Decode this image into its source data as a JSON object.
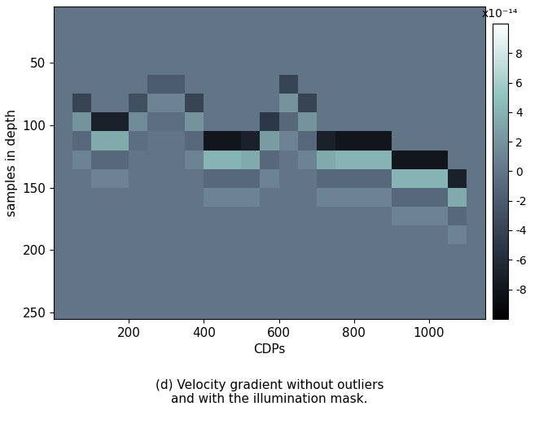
{
  "chart_data": {
    "type": "heatmap",
    "xlabel": "CDPs",
    "ylabel": "samples in depth",
    "caption": "(d) Velocity gradient without outliers\nand with the illumination mask.",
    "xlim": [
      0,
      1150
    ],
    "ylim": [
      255,
      5
    ],
    "xticks": [
      200,
      400,
      600,
      800,
      1000
    ],
    "yticks": [
      50,
      100,
      150,
      200,
      250
    ],
    "x_edges": [
      0,
      50,
      100,
      150,
      200,
      250,
      300,
      350,
      400,
      450,
      500,
      550,
      600,
      650,
      700,
      750,
      800,
      850,
      900,
      950,
      1000,
      1050,
      1100,
      1150
    ],
    "y_edges": [
      5,
      30,
      45,
      60,
      75,
      90,
      105,
      120,
      135,
      150,
      165,
      180,
      195,
      210,
      225,
      240,
      255
    ],
    "cells": [
      [
        0,
        0,
        0,
        0,
        0,
        0,
        0,
        0,
        0,
        0,
        0,
        0,
        0,
        0,
        0,
        0,
        0,
        0,
        0,
        0,
        0,
        0,
        0
      ],
      [
        0,
        0,
        0,
        0,
        0,
        0,
        0,
        0,
        0,
        0,
        0,
        0,
        0,
        0,
        0,
        0,
        0,
        0,
        0,
        0,
        0,
        0,
        0
      ],
      [
        0,
        0,
        0,
        0,
        0,
        0,
        0,
        0,
        0,
        0,
        0,
        0,
        0,
        0,
        0,
        0,
        0,
        0,
        0,
        0,
        0,
        0,
        0
      ],
      [
        0,
        0,
        0,
        0,
        0,
        -2,
        -2,
        0,
        0,
        0,
        0,
        0,
        -4,
        0,
        0,
        0,
        0,
        0,
        0,
        0,
        0,
        0,
        0
      ],
      [
        0,
        -4,
        0,
        0,
        -3,
        1,
        1,
        -4,
        0,
        0,
        0,
        0,
        2,
        -4,
        0,
        0,
        0,
        0,
        0,
        0,
        0,
        0,
        0
      ],
      [
        0,
        2,
        -7,
        -7,
        1.5,
        -0.5,
        -0.5,
        2,
        0,
        0,
        0,
        -5,
        -1,
        2,
        0,
        0,
        0,
        0,
        0,
        0,
        0,
        0,
        0
      ],
      [
        0,
        -1,
        3.5,
        3.5,
        -0.5,
        0,
        0,
        -1,
        -8,
        -8,
        -7,
        2.5,
        1,
        -1,
        -7,
        -8,
        -8,
        -8,
        0,
        0,
        0,
        0,
        0
      ],
      [
        0,
        1,
        -1,
        -1,
        0,
        0,
        0,
        1,
        4,
        4,
        3.5,
        -1,
        0,
        1,
        3.5,
        4,
        4,
        4,
        -8,
        -8,
        -8,
        0,
        0
      ],
      [
        0,
        0,
        1,
        1,
        0,
        0,
        0,
        0,
        -1,
        -1,
        -1,
        1,
        0,
        0,
        -1,
        -1,
        -1,
        -1,
        4,
        4,
        4,
        -7,
        0
      ],
      [
        0,
        0,
        0,
        0,
        0,
        0,
        0,
        0,
        1,
        1,
        1,
        0,
        0,
        0,
        1,
        1,
        1,
        1,
        -1,
        -1,
        -1,
        3.5,
        0
      ],
      [
        0,
        0,
        0,
        0,
        0,
        0,
        0,
        0,
        0,
        0,
        0,
        0,
        0,
        0,
        0,
        0,
        0,
        0,
        1,
        1,
        1,
        -1,
        0
      ],
      [
        0,
        0,
        0,
        0,
        0,
        0,
        0,
        0,
        0,
        0,
        0,
        0,
        0,
        0,
        0,
        0,
        0,
        0,
        0,
        0,
        0,
        1,
        0
      ],
      [
        0,
        0,
        0,
        0,
        0,
        0,
        0,
        0,
        0,
        0,
        0,
        0,
        0,
        0,
        0,
        0,
        0,
        0,
        0,
        0,
        0,
        0,
        0
      ],
      [
        0,
        0,
        0,
        0,
        0,
        0,
        0,
        0,
        0,
        0,
        0,
        0,
        0,
        0,
        0,
        0,
        0,
        0,
        0,
        0,
        0,
        0,
        0
      ],
      [
        0,
        0,
        0,
        0,
        0,
        0,
        0,
        0,
        0,
        0,
        0,
        0,
        0,
        0,
        0,
        0,
        0,
        0,
        0,
        0,
        0,
        0,
        0
      ],
      [
        0,
        0,
        0,
        0,
        0,
        0,
        0,
        0,
        0,
        0,
        0,
        0,
        0,
        0,
        0,
        0,
        0,
        0,
        0,
        0,
        0,
        0,
        0
      ]
    ],
    "color_range": [
      -10,
      10
    ],
    "color_ticks": [
      -8,
      -6,
      -4,
      -2,
      0,
      2,
      4,
      6,
      8
    ],
    "color_label": "x10⁻¹⁴"
  }
}
